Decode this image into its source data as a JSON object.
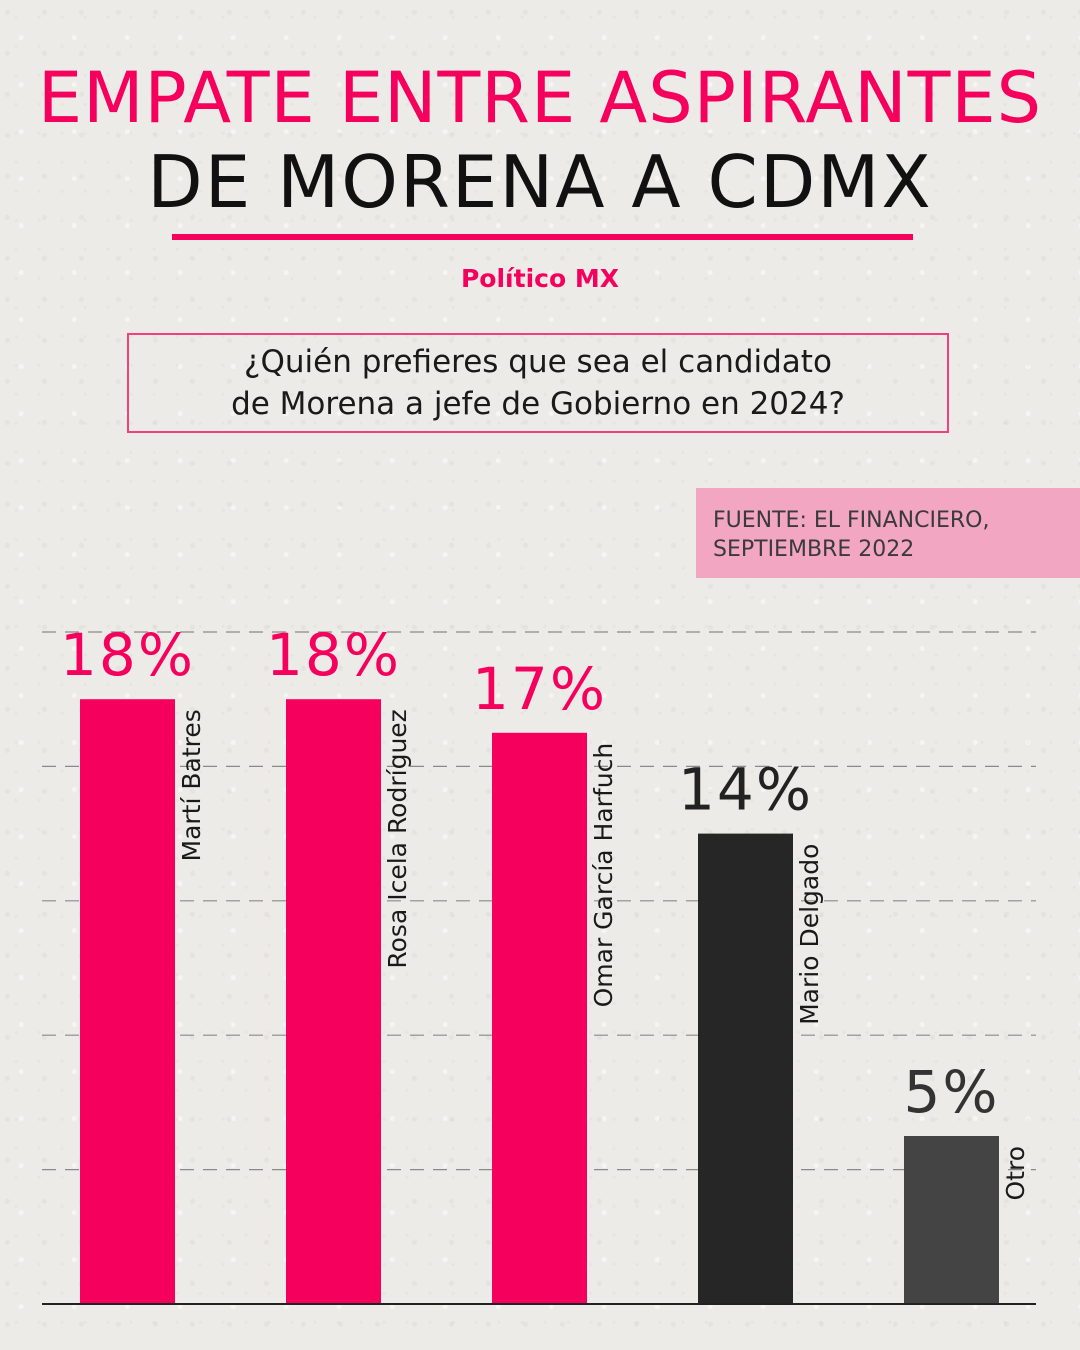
{
  "header": {
    "title_line1": "EMPATE ENTRE ASPIRANTES",
    "title_line2": "DE MORENA A CDMX",
    "outlet": "Político MX"
  },
  "question": {
    "line1": "¿Quién prefieres que sea el candidato",
    "line2": "de Morena a jefe de Gobierno en 2024?"
  },
  "source": {
    "line1": "FUENTE: EL FINANCIERO,",
    "line2": "SEPTIEMBRE 2022"
  },
  "colors": {
    "accent": "#f5005c",
    "dark_bar": "#262626",
    "gray_bar": "#444444"
  },
  "chart_data": {
    "type": "bar",
    "categories": [
      "Martí Batres",
      "Rosa Icela Rodríguez",
      "Omar García Harfuch",
      "Mario Delgado",
      "Otro"
    ],
    "values": [
      18,
      18,
      17,
      14,
      5
    ],
    "value_labels": [
      "18%",
      "18%",
      "17%",
      "14%",
      "5%"
    ],
    "bar_colors": [
      "#f5005c",
      "#f5005c",
      "#f5005c",
      "#262626",
      "#444444"
    ],
    "label_colors": [
      "#f5005c",
      "#f5005c",
      "#f5005c",
      "#222222",
      "#333333"
    ],
    "ylim": [
      0,
      20
    ],
    "grid": true,
    "title": "",
    "xlabel": "",
    "ylabel": ""
  }
}
